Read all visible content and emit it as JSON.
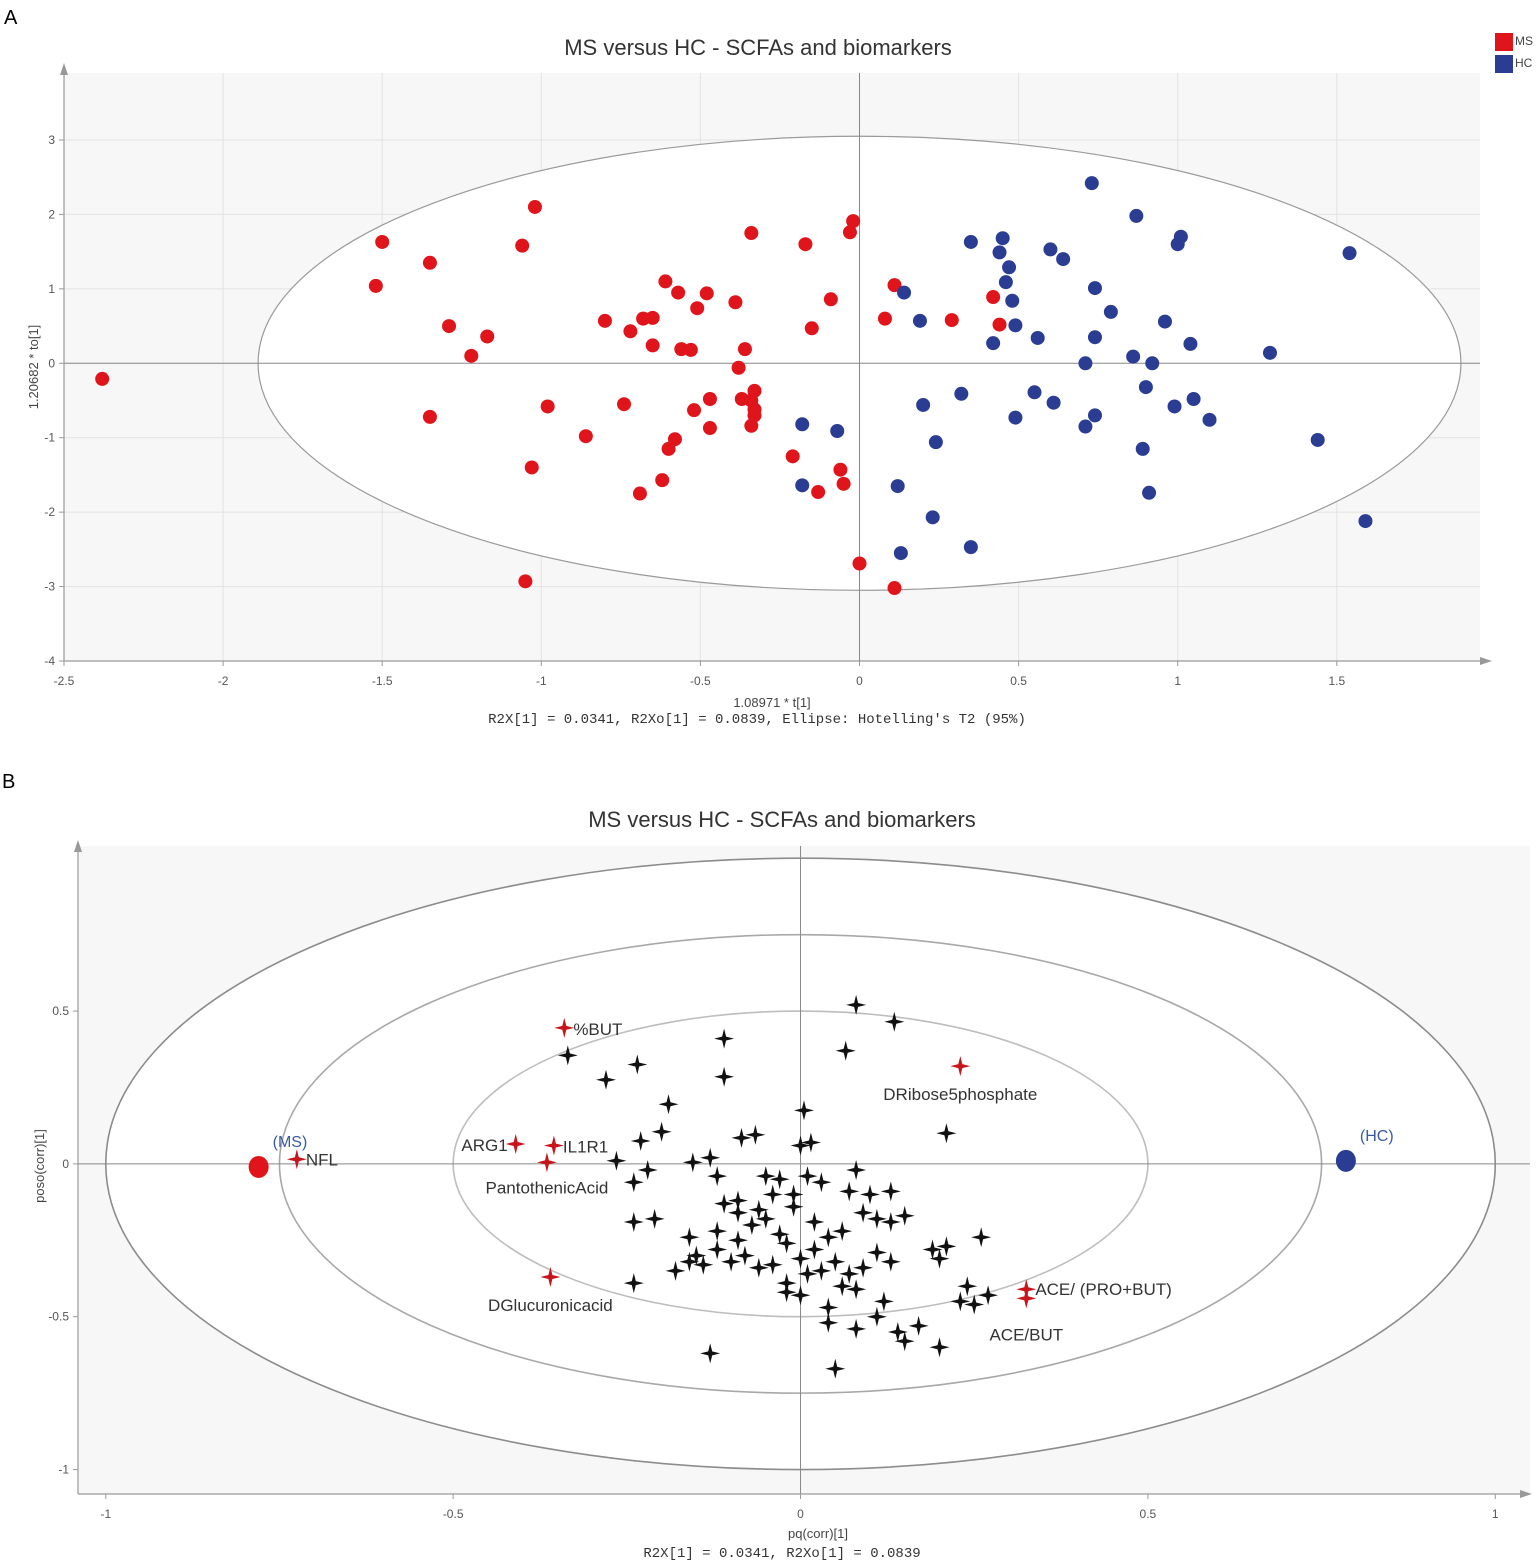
{
  "chart_data": [
    {
      "panel": "A",
      "type": "scatter",
      "title": "MS versus HC - SCFAs and biomarkers",
      "xlabel": "1.08971 * t[1]",
      "ylabel": "1.20682 * to[1]",
      "stats_text": "R2X[1] = 0.0341, R2Xo[1] = 0.0839, Ellipse: Hotelling's T2 (95%)",
      "xlim": [
        -2.5,
        1.95
      ],
      "ylim": [
        -4,
        3.9
      ],
      "xticks": [
        "-2.5",
        "-2",
        "-1.5",
        "-1",
        "-0.5",
        "0",
        "0.5",
        "1",
        "1.5"
      ],
      "yticks": [
        "3",
        "2",
        "1",
        "0",
        "-1",
        "-2",
        "-3",
        "-4"
      ],
      "ellipse": {
        "cx": 0,
        "cy": 0,
        "rx": 1.89,
        "ry": 3.05,
        "label": "Hotelling's T2 (95%)"
      },
      "legend": [
        {
          "name": "MS",
          "color": "#e0141b"
        },
        {
          "name": "HC",
          "color": "#2a3d92"
        }
      ],
      "series": [
        {
          "name": "MS",
          "color": "#e0141b",
          "points": [
            [
              -2.38,
              -0.21
            ],
            [
              -1.5,
              1.63
            ],
            [
              -1.52,
              1.04
            ],
            [
              -1.35,
              1.35
            ],
            [
              -1.35,
              -0.72
            ],
            [
              -1.29,
              0.5
            ],
            [
              -1.22,
              0.1
            ],
            [
              -1.17,
              0.36
            ],
            [
              -1.06,
              1.58
            ],
            [
              -1.02,
              2.1
            ],
            [
              -1.03,
              -1.4
            ],
            [
              -0.98,
              -0.58
            ],
            [
              -1.05,
              -2.93
            ],
            [
              -0.86,
              -0.98
            ],
            [
              -0.8,
              0.57
            ],
            [
              -0.74,
              -0.55
            ],
            [
              -0.72,
              0.43
            ],
            [
              -0.68,
              0.6
            ],
            [
              -0.65,
              0.61
            ],
            [
              -0.65,
              0.24
            ],
            [
              -0.61,
              1.1
            ],
            [
              -0.6,
              -1.15
            ],
            [
              -0.58,
              -1.02
            ],
            [
              -0.62,
              -1.57
            ],
            [
              -0.69,
              -1.75
            ],
            [
              -0.57,
              0.95
            ],
            [
              -0.56,
              0.19
            ],
            [
              -0.53,
              0.18
            ],
            [
              -0.52,
              -0.63
            ],
            [
              -0.51,
              0.74
            ],
            [
              -0.48,
              0.94
            ],
            [
              -0.47,
              -0.48
            ],
            [
              -0.47,
              -0.87
            ],
            [
              -0.39,
              0.82
            ],
            [
              -0.38,
              -0.06
            ],
            [
              -0.36,
              0.19
            ],
            [
              -0.37,
              -0.48
            ],
            [
              -0.34,
              -0.5
            ],
            [
              -0.34,
              -0.84
            ],
            [
              -0.33,
              -0.37
            ],
            [
              -0.33,
              -0.62
            ],
            [
              -0.33,
              -0.7
            ],
            [
              -0.34,
              1.75
            ],
            [
              -0.17,
              1.6
            ],
            [
              -0.15,
              0.47
            ],
            [
              -0.09,
              0.86
            ],
            [
              -0.21,
              -1.25
            ],
            [
              -0.13,
              -1.73
            ],
            [
              -0.06,
              -1.43
            ],
            [
              -0.05,
              -1.62
            ],
            [
              -0.03,
              1.76
            ],
            [
              -0.02,
              1.91
            ],
            [
              0.0,
              -2.69
            ],
            [
              0.08,
              0.6
            ],
            [
              0.11,
              1.05
            ],
            [
              0.29,
              0.58
            ],
            [
              0.42,
              0.89
            ],
            [
              0.44,
              0.52
            ],
            [
              0.11,
              -3.02
            ]
          ]
        },
        {
          "name": "HC",
          "color": "#2a3d92",
          "points": [
            [
              -0.18,
              -0.82
            ],
            [
              -0.18,
              -1.64
            ],
            [
              -0.07,
              -0.91
            ],
            [
              0.14,
              0.95
            ],
            [
              0.12,
              -1.65
            ],
            [
              0.13,
              -2.55
            ],
            [
              0.19,
              0.57
            ],
            [
              0.2,
              -0.56
            ],
            [
              0.24,
              -1.06
            ],
            [
              0.23,
              -2.07
            ],
            [
              0.32,
              -0.41
            ],
            [
              0.35,
              1.63
            ],
            [
              0.35,
              -2.47
            ],
            [
              0.42,
              0.27
            ],
            [
              0.44,
              1.49
            ],
            [
              0.45,
              1.68
            ],
            [
              0.46,
              1.09
            ],
            [
              0.47,
              1.29
            ],
            [
              0.48,
              0.84
            ],
            [
              0.49,
              0.51
            ],
            [
              0.49,
              -0.73
            ],
            [
              0.55,
              -0.39
            ],
            [
              0.56,
              0.34
            ],
            [
              0.6,
              1.53
            ],
            [
              0.61,
              -0.53
            ],
            [
              0.64,
              1.4
            ],
            [
              0.71,
              0.0
            ],
            [
              0.71,
              -0.85
            ],
            [
              0.73,
              2.42
            ],
            [
              0.74,
              1.01
            ],
            [
              0.74,
              0.35
            ],
            [
              0.74,
              -0.7
            ],
            [
              0.79,
              0.69
            ],
            [
              0.86,
              0.09
            ],
            [
              0.87,
              1.98
            ],
            [
              0.89,
              -1.15
            ],
            [
              0.9,
              -0.32
            ],
            [
              0.91,
              -1.74
            ],
            [
              0.92,
              0.0
            ],
            [
              0.96,
              0.56
            ],
            [
              0.99,
              -0.58
            ],
            [
              1.0,
              1.6
            ],
            [
              1.01,
              1.7
            ],
            [
              1.04,
              0.26
            ],
            [
              1.05,
              -0.48
            ],
            [
              1.1,
              -0.76
            ],
            [
              1.29,
              0.14
            ],
            [
              1.44,
              -1.03
            ],
            [
              1.54,
              1.48
            ],
            [
              1.59,
              -2.12
            ]
          ]
        }
      ]
    },
    {
      "panel": "B",
      "type": "scatter",
      "title": "MS versus HC - SCFAs and biomarkers",
      "xlabel": "pq(corr)[1]",
      "ylabel": "poso(corr)[1]",
      "stats_text": "R2X[1] = 0.0341, R2Xo[1] = 0.0839",
      "xlim": [
        -1.04,
        1.05
      ],
      "ylim": [
        -1.08,
        1.04
      ],
      "xticks": [
        "-1",
        "-0.5",
        "0",
        "0.5",
        "1"
      ],
      "yticks": [
        "0.5",
        "0",
        "-0.5",
        "-1"
      ],
      "ellipses": [
        {
          "rx": 1.0,
          "ry": 1.0
        },
        {
          "rx": 0.75,
          "ry": 0.75
        },
        {
          "rx": 0.5,
          "ry": 0.5
        }
      ],
      "groups": [
        {
          "name": "(MS)",
          "x": -0.78,
          "y": -0.01,
          "color": "#e0141b"
        },
        {
          "name": "(HC)",
          "x": 0.785,
          "y": 0.01,
          "color": "#2a3d92"
        }
      ],
      "highlighted_color": "#c8141b",
      "variables_color": "#111111",
      "highlighted": [
        {
          "name": "NFL",
          "x": -0.725,
          "y": 0.015
        },
        {
          "name": "%BUT",
          "x": -0.34,
          "y": 0.445
        },
        {
          "name": "ARG1",
          "x": -0.41,
          "y": 0.065
        },
        {
          "name": "IL1R1",
          "x": -0.355,
          "y": 0.06
        },
        {
          "name": "PantothenicAcid",
          "x": -0.365,
          "y": 0.005
        },
        {
          "name": "DRibose5phosphate",
          "x": 0.23,
          "y": 0.32
        },
        {
          "name": "DGlucuronicacid",
          "x": -0.36,
          "y": -0.37
        },
        {
          "name": "ACE/ (PRO+BUT)",
          "x": 0.325,
          "y": -0.41
        },
        {
          "name": "ACE/BUT",
          "x": 0.325,
          "y": -0.44
        }
      ],
      "variables": [
        [
          0.08,
          0.52
        ],
        [
          0.135,
          0.465
        ],
        [
          0.065,
          0.37
        ],
        [
          -0.11,
          0.41
        ],
        [
          -0.11,
          0.285
        ],
        [
          -0.335,
          0.355
        ],
        [
          -0.28,
          0.275
        ],
        [
          -0.235,
          0.325
        ],
        [
          -0.19,
          0.195
        ],
        [
          -0.2,
          0.105
        ],
        [
          -0.23,
          0.075
        ],
        [
          -0.265,
          0.01
        ],
        [
          -0.22,
          -0.02
        ],
        [
          -0.155,
          0.005
        ],
        [
          -0.085,
          0.085
        ],
        [
          -0.065,
          0.095
        ],
        [
          0.005,
          0.175
        ],
        [
          0.015,
          0.07
        ],
        [
          0,
          0.06
        ],
        [
          0.21,
          0.1
        ],
        [
          -0.13,
          0.02
        ],
        [
          -0.12,
          -0.04
        ],
        [
          -0.09,
          -0.12
        ],
        [
          -0.05,
          -0.04
        ],
        [
          -0.03,
          -0.05
        ],
        [
          -0.01,
          -0.1
        ],
        [
          0.01,
          -0.04
        ],
        [
          0.03,
          -0.06
        ],
        [
          0.07,
          -0.09
        ],
        [
          0.1,
          -0.1
        ],
        [
          0.13,
          -0.09
        ],
        [
          -0.24,
          -0.06
        ],
        [
          -0.24,
          -0.19
        ],
        [
          -0.21,
          -0.18
        ],
        [
          -0.16,
          -0.24
        ],
        [
          -0.15,
          -0.3
        ],
        [
          -0.12,
          -0.22
        ],
        [
          -0.11,
          -0.13
        ],
        [
          -0.09,
          -0.16
        ],
        [
          -0.07,
          -0.2
        ],
        [
          -0.05,
          -0.18
        ],
        [
          -0.03,
          -0.23
        ],
        [
          -0.01,
          -0.14
        ],
        [
          0.02,
          -0.19
        ],
        [
          0.04,
          -0.24
        ],
        [
          0.06,
          -0.22
        ],
        [
          0.09,
          -0.16
        ],
        [
          0.11,
          -0.18
        ],
        [
          0.13,
          -0.19
        ],
        [
          0.15,
          -0.17
        ],
        [
          -0.09,
          -0.25
        ],
        [
          -0.12,
          -0.28
        ],
        [
          -0.16,
          -0.32
        ],
        [
          -0.18,
          -0.35
        ],
        [
          -0.14,
          -0.33
        ],
        [
          -0.1,
          -0.32
        ],
        [
          -0.08,
          -0.3
        ],
        [
          -0.06,
          -0.34
        ],
        [
          -0.04,
          -0.33
        ],
        [
          -0.02,
          -0.26
        ],
        [
          0,
          -0.31
        ],
        [
          0.02,
          -0.28
        ],
        [
          0.05,
          -0.32
        ],
        [
          0.07,
          -0.36
        ],
        [
          0.09,
          -0.34
        ],
        [
          0.11,
          -0.29
        ],
        [
          0.13,
          -0.32
        ],
        [
          0.06,
          -0.4
        ],
        [
          -0.02,
          -0.39
        ],
        [
          0,
          -0.43
        ],
        [
          0.04,
          -0.47
        ],
        [
          0.08,
          -0.41
        ],
        [
          0.12,
          -0.45
        ],
        [
          0.19,
          -0.28
        ],
        [
          0.2,
          -0.31
        ],
        [
          0.21,
          -0.27
        ],
        [
          0.26,
          -0.24
        ],
        [
          0.24,
          -0.4
        ],
        [
          0.23,
          -0.45
        ],
        [
          0.25,
          -0.46
        ],
        [
          0.27,
          -0.43
        ],
        [
          0.04,
          -0.52
        ],
        [
          0.11,
          -0.5
        ],
        [
          0.14,
          -0.55
        ],
        [
          0.08,
          -0.54
        ],
        [
          0.15,
          -0.58
        ],
        [
          0.17,
          -0.53
        ],
        [
          0.2,
          -0.6
        ],
        [
          0.05,
          -0.67
        ],
        [
          -0.13,
          -0.62
        ],
        [
          -0.24,
          -0.39
        ],
        [
          -0.02,
          -0.42
        ],
        [
          0.03,
          -0.35
        ],
        [
          0.01,
          -0.36
        ],
        [
          -0.06,
          -0.15
        ],
        [
          -0.04,
          -0.1
        ],
        [
          0.08,
          -0.02
        ]
      ]
    }
  ]
}
